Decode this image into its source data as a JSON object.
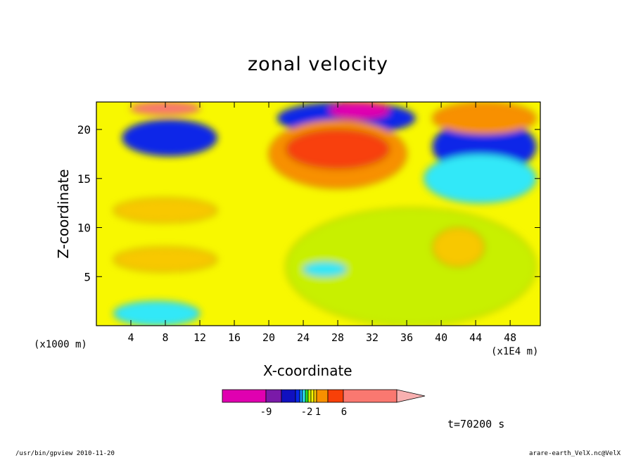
{
  "title": "zonal velocity",
  "footer": {
    "left": "/usr/bin/gpview  2010-11-20",
    "right": "arare-earth_VelX.nc@VelX"
  },
  "timestamp": "t=70200 s",
  "chart_data": {
    "type": "heatmap",
    "title": "zonal velocity",
    "xlabel": "X-coordinate",
    "ylabel": "Z-coordinate",
    "x_unit_note": "(x1E4 m)",
    "z_unit_note": "(x1000 m)",
    "xlim": [
      0,
      51.5
    ],
    "ylim": [
      0,
      22.8
    ],
    "x_ticks": [
      4,
      8,
      12,
      16,
      20,
      24,
      28,
      32,
      36,
      40,
      44,
      48
    ],
    "y_ticks": [
      5,
      10,
      15,
      20
    ],
    "colorbar": {
      "colors": [
        "#e000b0",
        "#7a1aa8",
        "#1010c0",
        "#0828e8",
        "#1890f8",
        "#30e8f8",
        "#28e028",
        "#c8f000",
        "#f8f800",
        "#f8c800",
        "#f89000",
        "#f84008",
        "#fa7870",
        "#f8b0b0"
      ],
      "tick_labels": [
        "-9",
        "-2",
        "1",
        "6"
      ]
    },
    "field_regions": [
      {
        "value": 9,
        "x": [
          4,
          12
        ],
        "z": [
          21.5,
          22.8
        ]
      },
      {
        "value": -6,
        "x": [
          3,
          14
        ],
        "z": [
          17.3,
          21
        ]
      },
      {
        "value": -6,
        "x": [
          21,
          37
        ],
        "z": [
          19.5,
          22.8
        ]
      },
      {
        "value": -9,
        "x": [
          27,
          34
        ],
        "z": [
          21,
          22.8
        ]
      },
      {
        "value": 4,
        "x": [
          20,
          36
        ],
        "z": [
          14,
          21
        ]
      },
      {
        "value": 6,
        "x": [
          22,
          34
        ],
        "z": [
          16,
          20
        ]
      },
      {
        "value": -6,
        "x": [
          39,
          51
        ],
        "z": [
          15.5,
          21
        ]
      },
      {
        "value": -2,
        "x": [
          38,
          51
        ],
        "z": [
          12.5,
          17.5
        ]
      },
      {
        "value": 4,
        "x": [
          39,
          51
        ],
        "z": [
          19.5,
          22.8
        ]
      },
      {
        "value": 3,
        "x": [
          2,
          14
        ],
        "z": [
          10.5,
          13
        ]
      },
      {
        "value": 3,
        "x": [
          2,
          14
        ],
        "z": [
          5.5,
          8
        ]
      },
      {
        "value": -2,
        "x": [
          2,
          12
        ],
        "z": [
          0,
          2.5
        ]
      },
      {
        "value": 1,
        "x": [
          22,
          51
        ],
        "z": [
          0,
          12
        ]
      },
      {
        "value": -2,
        "x": [
          24,
          29
        ],
        "z": [
          5,
          6.5
        ]
      },
      {
        "value": 3,
        "x": [
          39,
          45
        ],
        "z": [
          6,
          10
        ]
      }
    ]
  }
}
